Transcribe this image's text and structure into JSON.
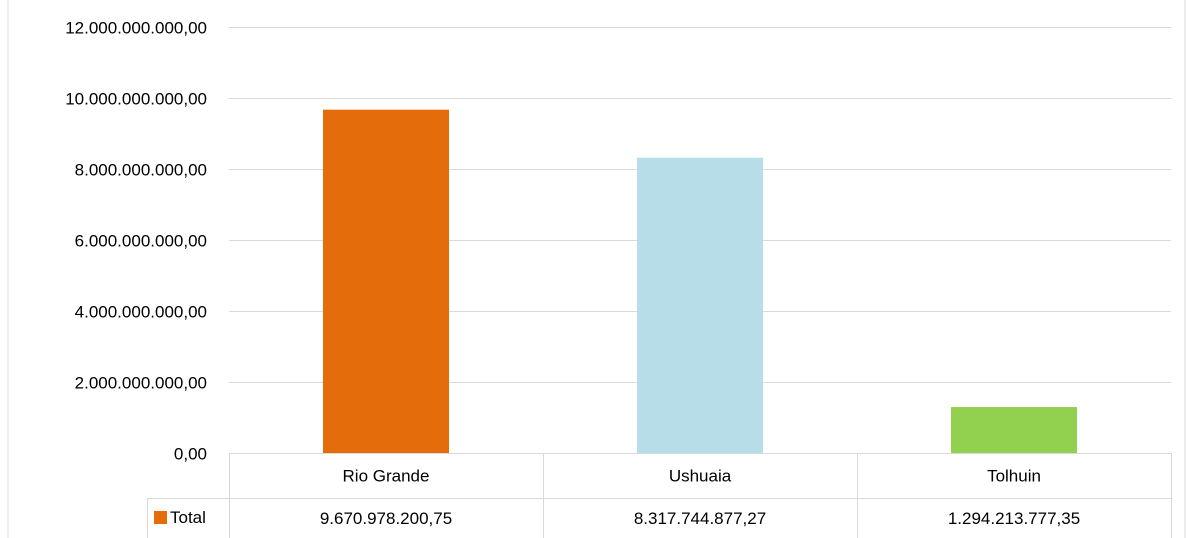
{
  "chart_data": {
    "type": "bar",
    "categories": [
      "Rio Grande",
      "Ushuaia",
      "Tolhuin"
    ],
    "series": [
      {
        "name": "Total",
        "values": [
          9670978200.75,
          8317744877.27,
          1294213777.35
        ],
        "color": "#e46c0a"
      }
    ],
    "bar_colors": [
      "#e46c0a",
      "#b7dde8",
      "#92d050"
    ],
    "data_table": {
      "series_label": "Total",
      "cells": [
        "9.670.978.200,75",
        "8.317.744.877,27",
        "1.294.213.777,35"
      ]
    },
    "y_ticks": [
      "0,00",
      "2.000.000.000,00",
      "4.000.000.000,00",
      "6.000.000.000,00",
      "8.000.000.000,00",
      "10.000.000.000,00",
      "12.000.000.000,00"
    ],
    "ylim": [
      0,
      12000000000
    ],
    "grid": true,
    "legend_placement": "data-table",
    "title": "",
    "xlabel": "",
    "ylabel": ""
  }
}
